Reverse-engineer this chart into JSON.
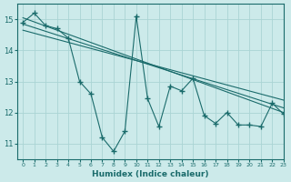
{
  "x": [
    0,
    1,
    2,
    3,
    4,
    5,
    6,
    7,
    8,
    9,
    10,
    11,
    12,
    13,
    14,
    15,
    16,
    17,
    18,
    19,
    20,
    21,
    22,
    23
  ],
  "y_main": [
    14.9,
    15.2,
    14.8,
    14.7,
    14.4,
    13.0,
    12.6,
    11.2,
    10.75,
    11.4,
    15.1,
    12.45,
    11.55,
    12.85,
    12.7,
    13.1,
    11.9,
    11.65,
    12.0,
    11.6,
    11.6,
    11.55,
    12.3,
    11.95
  ],
  "trend1_x": [
    0,
    23
  ],
  "trend1_y": [
    15.05,
    12.0
  ],
  "trend2_x": [
    0,
    23
  ],
  "trend2_y": [
    14.85,
    12.15
  ],
  "trend3_x": [
    0,
    23
  ],
  "trend3_y": [
    14.65,
    12.4
  ],
  "bg_color": "#cceaea",
  "line_color": "#1a6b6b",
  "grid_color": "#aad4d4",
  "xlabel": "Humidex (Indice chaleur)",
  "xlim": [
    -0.5,
    23
  ],
  "ylim": [
    10.5,
    15.5
  ],
  "yticks": [
    11,
    12,
    13,
    14,
    15
  ],
  "xticks": [
    0,
    1,
    2,
    3,
    4,
    5,
    6,
    7,
    8,
    9,
    10,
    11,
    12,
    13,
    14,
    15,
    16,
    17,
    18,
    19,
    20,
    21,
    22,
    23
  ],
  "xtick_labels": [
    "0",
    "1",
    "2",
    "3",
    "4",
    "5",
    "6",
    "7",
    "8",
    "9",
    "10",
    "11",
    "12",
    "13",
    "14",
    "15",
    "16",
    "17",
    "18",
    "19",
    "20",
    "21",
    "22",
    "23"
  ]
}
